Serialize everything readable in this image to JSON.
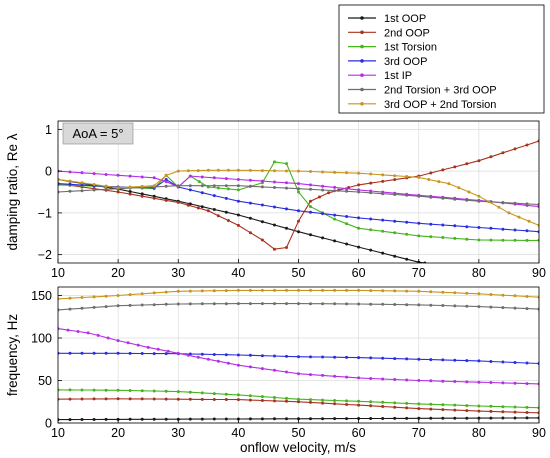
{
  "chart_data": {
    "type": "line",
    "legend": {
      "placement": "top-right",
      "entries": [
        {
          "name": "1st OOP",
          "color": "#1a1a1a"
        },
        {
          "name": "2nd OOP",
          "color": "#a8321e"
        },
        {
          "name": "1st Torsion",
          "color": "#46b41e"
        },
        {
          "name": "3rd OOP",
          "color": "#2a2ee0"
        },
        {
          "name": "1st IP",
          "color": "#b42ee6"
        },
        {
          "name": "2nd Torsion + 3rd OOP",
          "color": "#6e6e6e"
        },
        {
          "name": "3rd OOP + 2nd Torsion",
          "color": "#c8961e"
        }
      ]
    },
    "panels": [
      {
        "id": "damping",
        "ylabel": "damping ratio, Re λ",
        "xlim": [
          10,
          90
        ],
        "ylim": [
          -2.2,
          1.2
        ],
        "yticks": [
          1,
          0,
          -1,
          -2
        ],
        "xticks": [
          10,
          20,
          30,
          40,
          50,
          60,
          70,
          80,
          90
        ],
        "grid": true,
        "annotation": "AoA = 5°",
        "series": [
          {
            "name": "1st OOP",
            "color": "#1a1a1a",
            "points": [
              [
                10,
                -0.2
              ],
              [
                20,
                -0.43
              ],
              [
                30,
                -0.72
              ],
              [
                40,
                -1.05
              ],
              [
                50,
                -1.45
              ],
              [
                60,
                -1.82
              ],
              [
                70,
                -2.18
              ],
              [
                71,
                -2.2
              ]
            ]
          },
          {
            "name": "2nd OOP",
            "color": "#a8321e",
            "points": [
              [
                10,
                -0.3
              ],
              [
                20,
                -0.5
              ],
              [
                30,
                -0.75
              ],
              [
                35,
                -0.95
              ],
              [
                40,
                -1.3
              ],
              [
                44,
                -1.65
              ],
              [
                46,
                -1.87
              ],
              [
                48,
                -1.83
              ],
              [
                50,
                -1.2
              ],
              [
                52,
                -0.72
              ],
              [
                55,
                -0.52
              ],
              [
                60,
                -0.33
              ],
              [
                70,
                -0.12
              ],
              [
                80,
                0.25
              ],
              [
                90,
                0.72
              ]
            ]
          },
          {
            "name": "1st Torsion",
            "color": "#46b41e",
            "points": [
              [
                10,
                -0.33
              ],
              [
                20,
                -0.38
              ],
              [
                26,
                -0.42
              ],
              [
                28,
                -0.1
              ],
              [
                30,
                -0.38
              ],
              [
                32,
                -0.12
              ],
              [
                35,
                -0.38
              ],
              [
                40,
                -0.45
              ],
              [
                44,
                -0.28
              ],
              [
                46,
                0.22
              ],
              [
                48,
                0.18
              ],
              [
                50,
                -0.5
              ],
              [
                52,
                -0.85
              ],
              [
                56,
                -1.15
              ],
              [
                60,
                -1.37
              ],
              [
                70,
                -1.55
              ],
              [
                80,
                -1.65
              ],
              [
                90,
                -1.66
              ]
            ]
          },
          {
            "name": "3rd OOP",
            "color": "#2a2ee0",
            "points": [
              [
                10,
                -0.3
              ],
              [
                20,
                -0.38
              ],
              [
                26,
                -0.4
              ],
              [
                28,
                -0.2
              ],
              [
                30,
                -0.38
              ],
              [
                32,
                -0.45
              ],
              [
                40,
                -0.72
              ],
              [
                50,
                -0.95
              ],
              [
                60,
                -1.12
              ],
              [
                70,
                -1.25
              ],
              [
                80,
                -1.35
              ],
              [
                90,
                -1.45
              ]
            ]
          },
          {
            "name": "1st IP",
            "color": "#b42ee6",
            "points": [
              [
                10,
                0.0
              ],
              [
                20,
                -0.1
              ],
              [
                26,
                -0.16
              ],
              [
                28,
                -0.25
              ],
              [
                30,
                -0.38
              ],
              [
                32,
                -0.12
              ],
              [
                40,
                -0.2
              ],
              [
                50,
                -0.3
              ],
              [
                60,
                -0.45
              ],
              [
                70,
                -0.58
              ],
              [
                80,
                -0.7
              ],
              [
                90,
                -0.85
              ]
            ]
          },
          {
            "name": "2nd Torsion + 3rd OOP",
            "color": "#6e6e6e",
            "points": [
              [
                10,
                -0.5
              ],
              [
                20,
                -0.42
              ],
              [
                30,
                -0.35
              ],
              [
                40,
                -0.35
              ],
              [
                50,
                -0.42
              ],
              [
                60,
                -0.5
              ],
              [
                70,
                -0.6
              ],
              [
                80,
                -0.72
              ],
              [
                90,
                -0.8
              ]
            ]
          },
          {
            "name": "3rd OOP + 2nd Torsion",
            "color": "#c8961e",
            "points": [
              [
                10,
                -0.2
              ],
              [
                20,
                -0.4
              ],
              [
                26,
                -0.35
              ],
              [
                28,
                -0.1
              ],
              [
                30,
                0.0
              ],
              [
                35,
                0.02
              ],
              [
                40,
                0.02
              ],
              [
                50,
                0.0
              ],
              [
                60,
                -0.05
              ],
              [
                70,
                -0.15
              ],
              [
                75,
                -0.3
              ],
              [
                80,
                -0.6
              ],
              [
                85,
                -1.0
              ],
              [
                90,
                -1.3
              ]
            ]
          }
        ]
      },
      {
        "id": "frequency",
        "ylabel": "frequency, Hz",
        "xlabel": "onflow velocity, m/s",
        "xlim": [
          10,
          90
        ],
        "ylim": [
          0,
          160
        ],
        "yticks": [
          0,
          50,
          100,
          150
        ],
        "xticks": [
          10,
          20,
          30,
          40,
          50,
          60,
          70,
          80,
          90
        ],
        "grid": true,
        "series": [
          {
            "name": "1st OOP",
            "color": "#1a1a1a",
            "points": [
              [
                10,
                4
              ],
              [
                30,
                4.5
              ],
              [
                50,
                5
              ],
              [
                70,
                5.5
              ],
              [
                90,
                6
              ]
            ]
          },
          {
            "name": "2nd OOP",
            "color": "#a8321e",
            "points": [
              [
                10,
                28
              ],
              [
                20,
                28.5
              ],
              [
                30,
                28
              ],
              [
                40,
                27.5
              ],
              [
                50,
                25
              ],
              [
                60,
                21
              ],
              [
                70,
                17
              ],
              [
                80,
                14
              ],
              [
                90,
                12
              ]
            ]
          },
          {
            "name": "1st Torsion",
            "color": "#46b41e",
            "points": [
              [
                10,
                39
              ],
              [
                20,
                38.5
              ],
              [
                30,
                37
              ],
              [
                40,
                33
              ],
              [
                50,
                28
              ],
              [
                60,
                25.5
              ],
              [
                70,
                22.5
              ],
              [
                80,
                20
              ],
              [
                90,
                18
              ]
            ]
          },
          {
            "name": "3rd OOP",
            "color": "#2a2ee0",
            "points": [
              [
                10,
                82
              ],
              [
                20,
                82
              ],
              [
                30,
                81.5
              ],
              [
                40,
                80
              ],
              [
                50,
                78
              ],
              [
                60,
                77
              ],
              [
                70,
                75
              ],
              [
                80,
                73
              ],
              [
                90,
                70
              ]
            ]
          },
          {
            "name": "1st IP",
            "color": "#b42ee6",
            "points": [
              [
                10,
                111
              ],
              [
                15,
                106
              ],
              [
                20,
                97
              ],
              [
                25,
                89
              ],
              [
                30,
                82
              ],
              [
                35,
                75
              ],
              [
                40,
                68
              ],
              [
                50,
                58
              ],
              [
                60,
                53
              ],
              [
                70,
                50
              ],
              [
                80,
                48
              ],
              [
                90,
                46
              ]
            ]
          },
          {
            "name": "2nd Torsion + 3rd OOP",
            "color": "#6e6e6e",
            "points": [
              [
                10,
                133
              ],
              [
                20,
                138
              ],
              [
                30,
                140
              ],
              [
                40,
                140.5
              ],
              [
                50,
                140.5
              ],
              [
                60,
                140
              ],
              [
                70,
                139
              ],
              [
                80,
                137
              ],
              [
                90,
                134
              ]
            ]
          },
          {
            "name": "3rd OOP + 2nd Torsion",
            "color": "#c8961e",
            "points": [
              [
                10,
                146
              ],
              [
                20,
                150
              ],
              [
                30,
                155
              ],
              [
                40,
                156
              ],
              [
                50,
                156
              ],
              [
                60,
                156
              ],
              [
                70,
                155
              ],
              [
                80,
                152
              ],
              [
                90,
                148
              ]
            ]
          }
        ]
      }
    ]
  }
}
